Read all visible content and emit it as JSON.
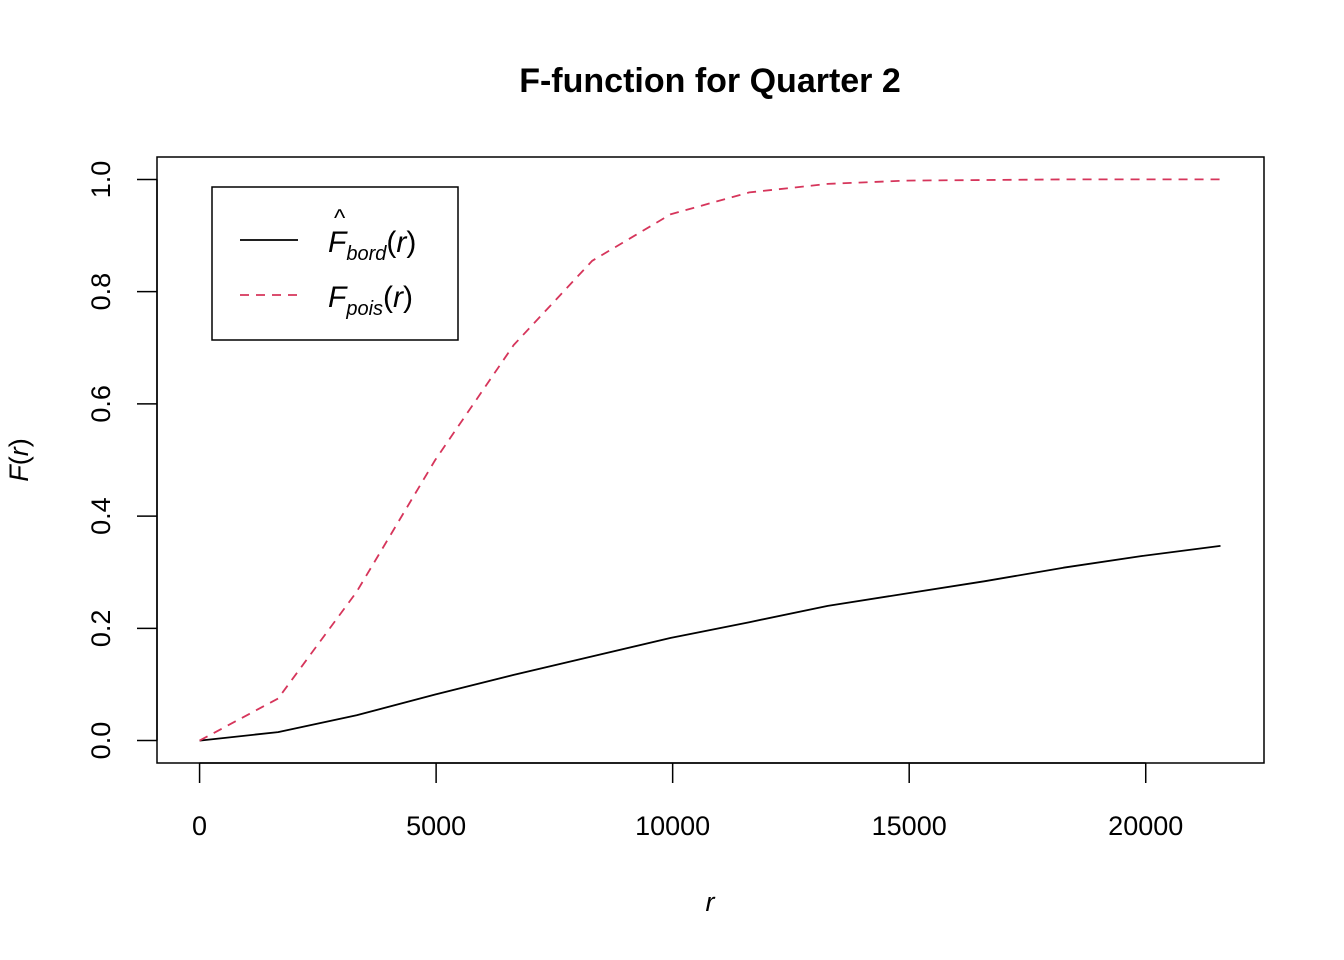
{
  "colors": {
    "background": "#ffffff",
    "axis": "#000000",
    "series_bord": "#000000",
    "series_pois": "#d6355b"
  },
  "chart_data": {
    "type": "line",
    "title": "F-function for Quarter 2",
    "xlabel": "r",
    "ylabel": "F(r)",
    "xlim": [
      -900,
      22500
    ],
    "ylim": [
      -0.04,
      1.04
    ],
    "xticks": [
      0,
      5000,
      10000,
      15000,
      20000
    ],
    "xtick_labels": [
      "0",
      "5000",
      "10000",
      "15000",
      "20000"
    ],
    "yticks": [
      0.0,
      0.2,
      0.4,
      0.6,
      0.8,
      1.0
    ],
    "ytick_labels": [
      "0.0",
      "0.2",
      "0.4",
      "0.6",
      "0.8",
      "1.0"
    ],
    "grid": false,
    "legend_position": "top-left",
    "series": [
      {
        "name": "F̂bord(r)",
        "legend": {
          "base": "F",
          "hat": true,
          "sub": "bord",
          "arg": "(r)"
        },
        "style": "solid",
        "x": [
          0,
          1660,
          3320,
          4980,
          6640,
          8300,
          9960,
          11620,
          13280,
          14940,
          16600,
          18260,
          19920,
          21580
        ],
        "y": [
          0.0,
          0.015,
          0.045,
          0.082,
          0.117,
          0.15,
          0.183,
          0.211,
          0.24,
          0.262,
          0.284,
          0.308,
          0.329,
          0.347
        ]
      },
      {
        "name": "Fpois(r)",
        "legend": {
          "base": "F",
          "hat": false,
          "sub": "pois",
          "arg": "(r)"
        },
        "style": "dashed",
        "x": [
          0,
          1660,
          3320,
          4980,
          6640,
          8300,
          9960,
          11620,
          13280,
          14940,
          16600,
          18260,
          19920,
          21580
        ],
        "y": [
          0.0,
          0.075,
          0.265,
          0.5,
          0.705,
          0.855,
          0.938,
          0.977,
          0.992,
          0.998,
          0.999,
          1.0,
          1.0,
          1.0
        ]
      }
    ]
  }
}
